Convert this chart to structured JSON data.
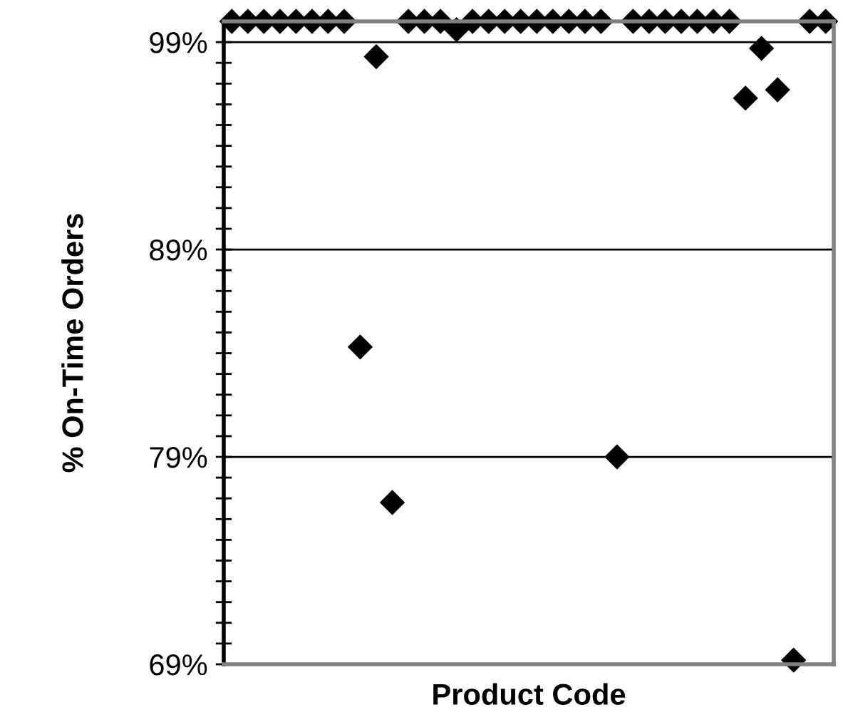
{
  "chart_data": {
    "type": "scatter",
    "xlabel": "Product Code",
    "ylabel": "% On-Time Orders",
    "categories": [
      null,
      null,
      null,
      null,
      null,
      null,
      null,
      null,
      null,
      null,
      null,
      null,
      null,
      null,
      null,
      null,
      null,
      null,
      null,
      null,
      null,
      null,
      null,
      null,
      null,
      null,
      null,
      null,
      null,
      null,
      null,
      null,
      null,
      null,
      null,
      null,
      null,
      null
    ],
    "series": [
      {
        "color": "#000000",
        "values": [
          100,
          100,
          100,
          100,
          100,
          100,
          100,
          100,
          84.3,
          98.3,
          76.8,
          100,
          100,
          100,
          99.6,
          100,
          100,
          100,
          100,
          100,
          100,
          100,
          100,
          100,
          79.0,
          100,
          100,
          100,
          100,
          100,
          100,
          100,
          96.3,
          98.7,
          96.7,
          69.2,
          100,
          100
        ]
      }
    ],
    "marker": "diamond",
    "ylim": [
      69,
      100
    ],
    "yticks": [
      {
        "value": 69,
        "label": "69%"
      },
      {
        "value": 70,
        "label": null
      },
      {
        "value": 71,
        "label": null
      },
      {
        "value": 72,
        "label": null
      },
      {
        "value": 73,
        "label": null
      },
      {
        "value": 74,
        "label": null
      },
      {
        "value": 75,
        "label": null
      },
      {
        "value": 76,
        "label": null
      },
      {
        "value": 77,
        "label": null
      },
      {
        "value": 78,
        "label": null
      },
      {
        "value": 79,
        "label": "79%"
      },
      {
        "value": 80,
        "label": null
      },
      {
        "value": 81,
        "label": null
      },
      {
        "value": 82,
        "label": null
      },
      {
        "value": 83,
        "label": null
      },
      {
        "value": 84,
        "label": null
      },
      {
        "value": 85,
        "label": null
      },
      {
        "value": 86,
        "label": null
      },
      {
        "value": 87,
        "label": null
      },
      {
        "value": 88,
        "label": null
      },
      {
        "value": 89,
        "label": "89%"
      },
      {
        "value": 90,
        "label": null
      },
      {
        "value": 91,
        "label": null
      },
      {
        "value": 92,
        "label": null
      },
      {
        "value": 93,
        "label": null
      },
      {
        "value": 94,
        "label": null
      },
      {
        "value": 95,
        "label": null
      },
      {
        "value": 96,
        "label": null
      },
      {
        "value": 97,
        "label": null
      },
      {
        "value": 98,
        "label": null
      },
      {
        "value": 99,
        "label": "99%"
      }
    ],
    "grid": "y",
    "legend": false
  }
}
